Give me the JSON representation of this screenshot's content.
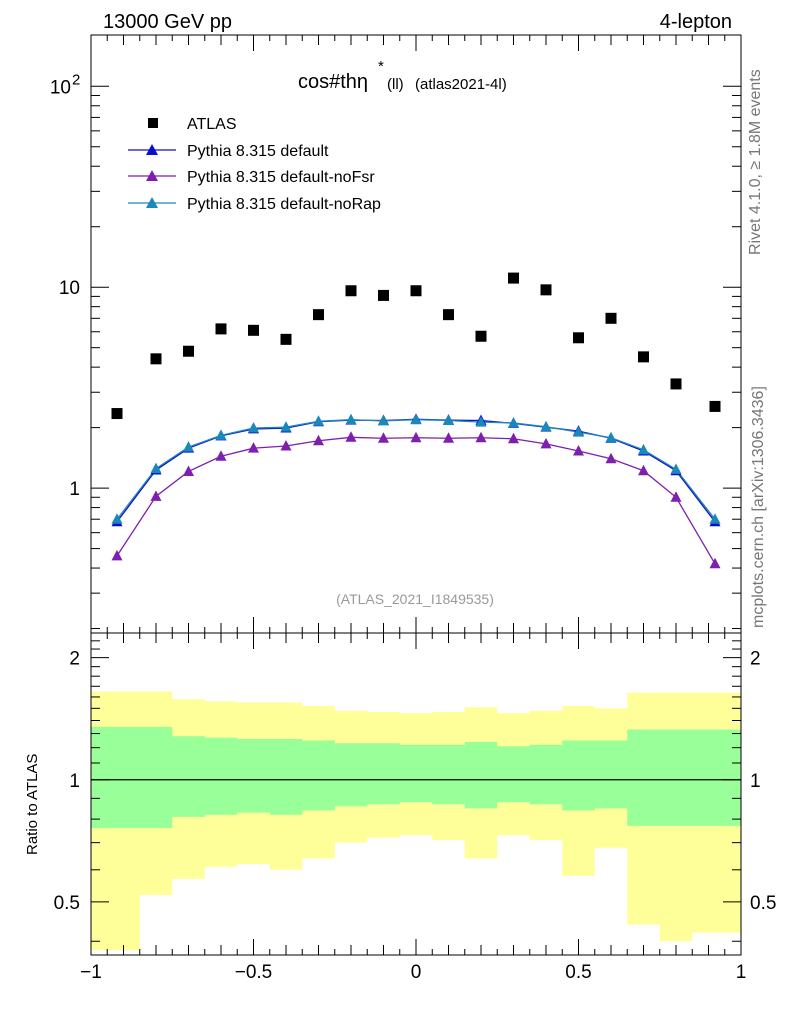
{
  "header": {
    "left": "13000 GeV pp",
    "right": "4-lepton"
  },
  "title": {
    "main": "cos#thη",
    "sup": "*",
    "sub": "(ll)",
    "tag": "(atlas2021-4l)"
  },
  "watermark": "(ATLAS_2021_I1849535)",
  "side_labels": {
    "top": "Rivet 4.1.0, ≥ 1.8M events",
    "bottom": "mcplots.cern.ch [arXiv:1306.3436]"
  },
  "ratio_ylabel": "Ratio to ATLAS",
  "tick_labels": {
    "main_y": [
      {
        "v": 1,
        "label": "1"
      },
      {
        "v": 10,
        "label": "10"
      },
      {
        "v": 100,
        "label": "10",
        "sup": "2"
      }
    ],
    "ratio_y": [
      {
        "v": 0.5,
        "label": "0.5"
      },
      {
        "v": 1,
        "label": "1"
      },
      {
        "v": 2,
        "label": "2"
      }
    ],
    "x": [
      {
        "v": -1,
        "label": "−1"
      },
      {
        "v": -0.5,
        "label": "−0.5"
      },
      {
        "v": 0,
        "label": "0"
      },
      {
        "v": 0.5,
        "label": "0.5"
      },
      {
        "v": 1,
        "label": "1"
      }
    ]
  },
  "chart_data": {
    "type": "scatter",
    "xlim": [
      -1.0,
      1.0
    ],
    "ylim": [
      0.19,
      180
    ],
    "yscale": "log",
    "ratio_ylim": [
      0.37,
      2.3
    ],
    "x": [
      -0.92,
      -0.8,
      -0.7,
      -0.6,
      -0.5,
      -0.4,
      -0.3,
      -0.2,
      -0.1,
      0.0,
      0.1,
      0.2,
      0.3,
      0.4,
      0.5,
      0.6,
      0.7,
      0.8,
      0.92
    ],
    "bin_edges": [
      -1.0,
      -0.85,
      -0.75,
      -0.65,
      -0.55,
      -0.45,
      -0.35,
      -0.25,
      -0.15,
      -0.05,
      0.05,
      0.15,
      0.25,
      0.35,
      0.45,
      0.55,
      0.65,
      0.75,
      0.85,
      1.0
    ],
    "series": [
      {
        "name": "ATLAS",
        "kind": "data",
        "marker": "square",
        "color": "#000000",
        "values": [
          2.35,
          4.4,
          4.8,
          6.2,
          6.1,
          5.5,
          7.3,
          9.6,
          9.1,
          9.6,
          7.3,
          5.7,
          11.1,
          9.7,
          5.6,
          7.0,
          4.5,
          3.3,
          2.55
        ]
      },
      {
        "name": "Pythia 8.315 default",
        "kind": "mc",
        "marker": "triangle",
        "color": "#0d0dcc",
        "values": [
          0.68,
          1.23,
          1.58,
          1.82,
          1.97,
          1.99,
          2.14,
          2.18,
          2.17,
          2.2,
          2.18,
          2.17,
          2.1,
          2.01,
          1.92,
          1.77,
          1.53,
          1.22,
          0.68
        ]
      },
      {
        "name": "Pythia 8.315 default-noFsr",
        "kind": "mc",
        "marker": "triangle",
        "color": "#7e1fae",
        "values": [
          0.46,
          0.91,
          1.21,
          1.44,
          1.58,
          1.62,
          1.72,
          1.79,
          1.77,
          1.78,
          1.77,
          1.78,
          1.76,
          1.66,
          1.53,
          1.4,
          1.22,
          0.9,
          0.42
        ]
      },
      {
        "name": "Pythia 8.315 default-noRap",
        "kind": "mc",
        "marker": "triangle",
        "color": "#1b88bb",
        "values": [
          0.7,
          1.25,
          1.6,
          1.83,
          1.99,
          2.01,
          2.15,
          2.19,
          2.16,
          2.19,
          2.17,
          2.13,
          2.11,
          2.02,
          1.9,
          1.78,
          1.55,
          1.24,
          0.7
        ]
      }
    ],
    "ratio_bands": {
      "outer_color": "#ffff99",
      "inner_color": "#99ff99",
      "outer_up": [
        1.65,
        1.65,
        1.58,
        1.56,
        1.55,
        1.55,
        1.52,
        1.48,
        1.47,
        1.46,
        1.47,
        1.51,
        1.46,
        1.48,
        1.52,
        1.5,
        1.64,
        1.64,
        1.64
      ],
      "outer_down": [
        0.38,
        0.52,
        0.57,
        0.61,
        0.62,
        0.6,
        0.64,
        0.7,
        0.72,
        0.73,
        0.71,
        0.64,
        0.73,
        0.71,
        0.58,
        0.68,
        0.44,
        0.4,
        0.42
      ],
      "inner_up": [
        1.35,
        1.35,
        1.28,
        1.27,
        1.26,
        1.26,
        1.25,
        1.23,
        1.23,
        1.22,
        1.22,
        1.24,
        1.21,
        1.22,
        1.25,
        1.25,
        1.33,
        1.33,
        1.33
      ],
      "inner_down": [
        0.76,
        0.76,
        0.81,
        0.82,
        0.83,
        0.82,
        0.84,
        0.86,
        0.87,
        0.88,
        0.87,
        0.85,
        0.88,
        0.87,
        0.84,
        0.85,
        0.77,
        0.77,
        0.77
      ]
    }
  }
}
